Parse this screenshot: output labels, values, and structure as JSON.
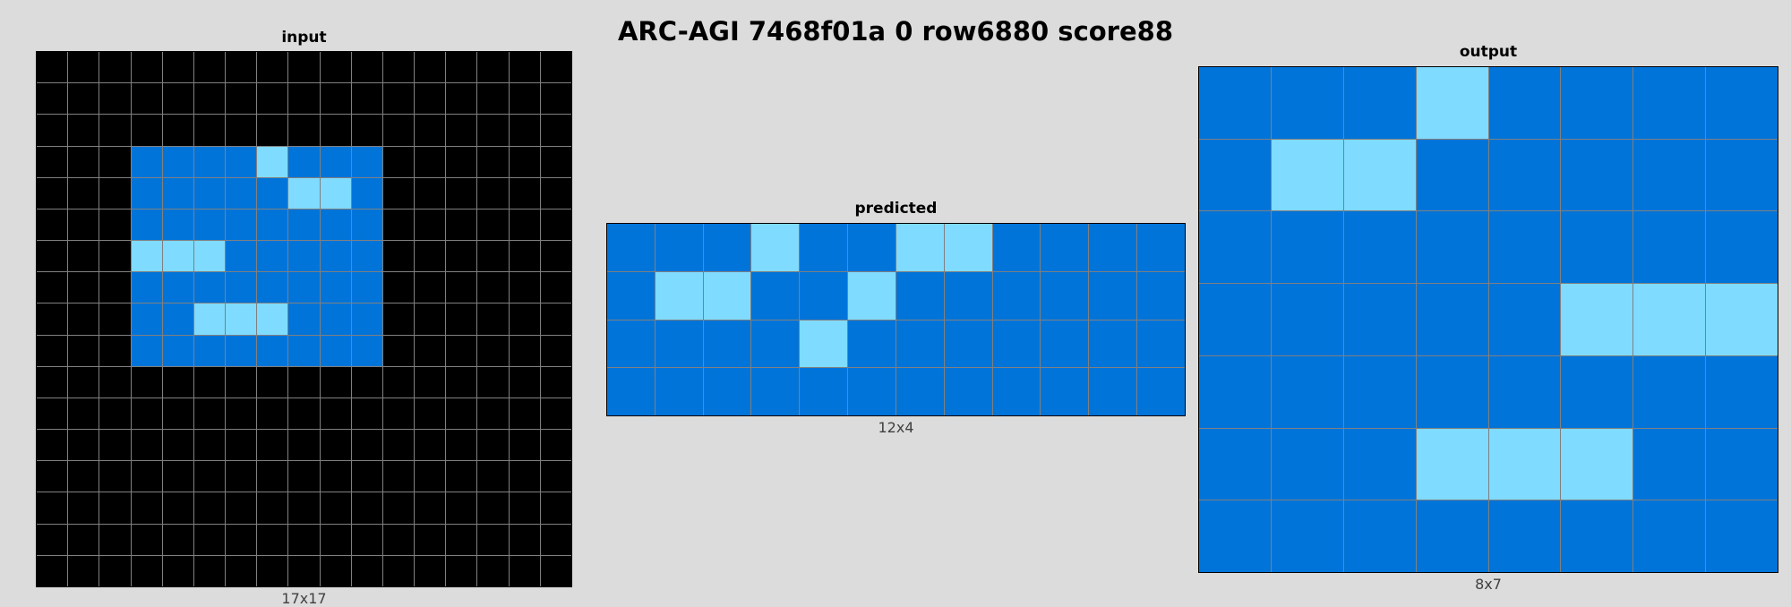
{
  "title": "ARC-AGI 7468f01a 0 row6880 score88",
  "palette": {
    "0": "#000000",
    "1": "#0074D9",
    "8": "#7FDBFF"
  },
  "panels": {
    "input": {
      "label": "input",
      "size_label": "17x17",
      "grid": [
        [
          0,
          0,
          0,
          0,
          0,
          0,
          0,
          0,
          0,
          0,
          0,
          0,
          0,
          0,
          0,
          0,
          0
        ],
        [
          0,
          0,
          0,
          0,
          0,
          0,
          0,
          0,
          0,
          0,
          0,
          0,
          0,
          0,
          0,
          0,
          0
        ],
        [
          0,
          0,
          0,
          0,
          0,
          0,
          0,
          0,
          0,
          0,
          0,
          0,
          0,
          0,
          0,
          0,
          0
        ],
        [
          0,
          0,
          0,
          1,
          1,
          1,
          1,
          8,
          1,
          1,
          1,
          0,
          0,
          0,
          0,
          0,
          0
        ],
        [
          0,
          0,
          0,
          1,
          1,
          1,
          1,
          1,
          8,
          8,
          1,
          0,
          0,
          0,
          0,
          0,
          0
        ],
        [
          0,
          0,
          0,
          1,
          1,
          1,
          1,
          1,
          1,
          1,
          1,
          0,
          0,
          0,
          0,
          0,
          0
        ],
        [
          0,
          0,
          0,
          8,
          8,
          8,
          1,
          1,
          1,
          1,
          1,
          0,
          0,
          0,
          0,
          0,
          0
        ],
        [
          0,
          0,
          0,
          1,
          1,
          1,
          1,
          1,
          1,
          1,
          1,
          0,
          0,
          0,
          0,
          0,
          0
        ],
        [
          0,
          0,
          0,
          1,
          1,
          8,
          8,
          8,
          1,
          1,
          1,
          0,
          0,
          0,
          0,
          0,
          0
        ],
        [
          0,
          0,
          0,
          1,
          1,
          1,
          1,
          1,
          1,
          1,
          1,
          0,
          0,
          0,
          0,
          0,
          0
        ],
        [
          0,
          0,
          0,
          0,
          0,
          0,
          0,
          0,
          0,
          0,
          0,
          0,
          0,
          0,
          0,
          0,
          0
        ],
        [
          0,
          0,
          0,
          0,
          0,
          0,
          0,
          0,
          0,
          0,
          0,
          0,
          0,
          0,
          0,
          0,
          0
        ],
        [
          0,
          0,
          0,
          0,
          0,
          0,
          0,
          0,
          0,
          0,
          0,
          0,
          0,
          0,
          0,
          0,
          0
        ],
        [
          0,
          0,
          0,
          0,
          0,
          0,
          0,
          0,
          0,
          0,
          0,
          0,
          0,
          0,
          0,
          0,
          0
        ],
        [
          0,
          0,
          0,
          0,
          0,
          0,
          0,
          0,
          0,
          0,
          0,
          0,
          0,
          0,
          0,
          0,
          0
        ],
        [
          0,
          0,
          0,
          0,
          0,
          0,
          0,
          0,
          0,
          0,
          0,
          0,
          0,
          0,
          0,
          0,
          0
        ],
        [
          0,
          0,
          0,
          0,
          0,
          0,
          0,
          0,
          0,
          0,
          0,
          0,
          0,
          0,
          0,
          0,
          0
        ]
      ]
    },
    "predicted": {
      "label": "predicted",
      "size_label": "12x4",
      "grid": [
        [
          1,
          1,
          1,
          8,
          1,
          1,
          8,
          8,
          1,
          1,
          1,
          1
        ],
        [
          1,
          8,
          8,
          1,
          1,
          8,
          1,
          1,
          1,
          1,
          1,
          1
        ],
        [
          1,
          1,
          1,
          1,
          8,
          1,
          1,
          1,
          1,
          1,
          1,
          1
        ],
        [
          1,
          1,
          1,
          1,
          1,
          1,
          1,
          1,
          1,
          1,
          1,
          1
        ]
      ]
    },
    "output": {
      "label": "output",
      "size_label": "8x7",
      "grid": [
        [
          1,
          1,
          1,
          8,
          1,
          1,
          1,
          1
        ],
        [
          1,
          8,
          8,
          1,
          1,
          1,
          1,
          1
        ],
        [
          1,
          1,
          1,
          1,
          1,
          1,
          1,
          1
        ],
        [
          1,
          1,
          1,
          1,
          1,
          8,
          8,
          8
        ],
        [
          1,
          1,
          1,
          1,
          1,
          1,
          1,
          1
        ],
        [
          1,
          1,
          1,
          8,
          8,
          8,
          1,
          1
        ],
        [
          1,
          1,
          1,
          1,
          1,
          1,
          1,
          1
        ]
      ]
    }
  }
}
